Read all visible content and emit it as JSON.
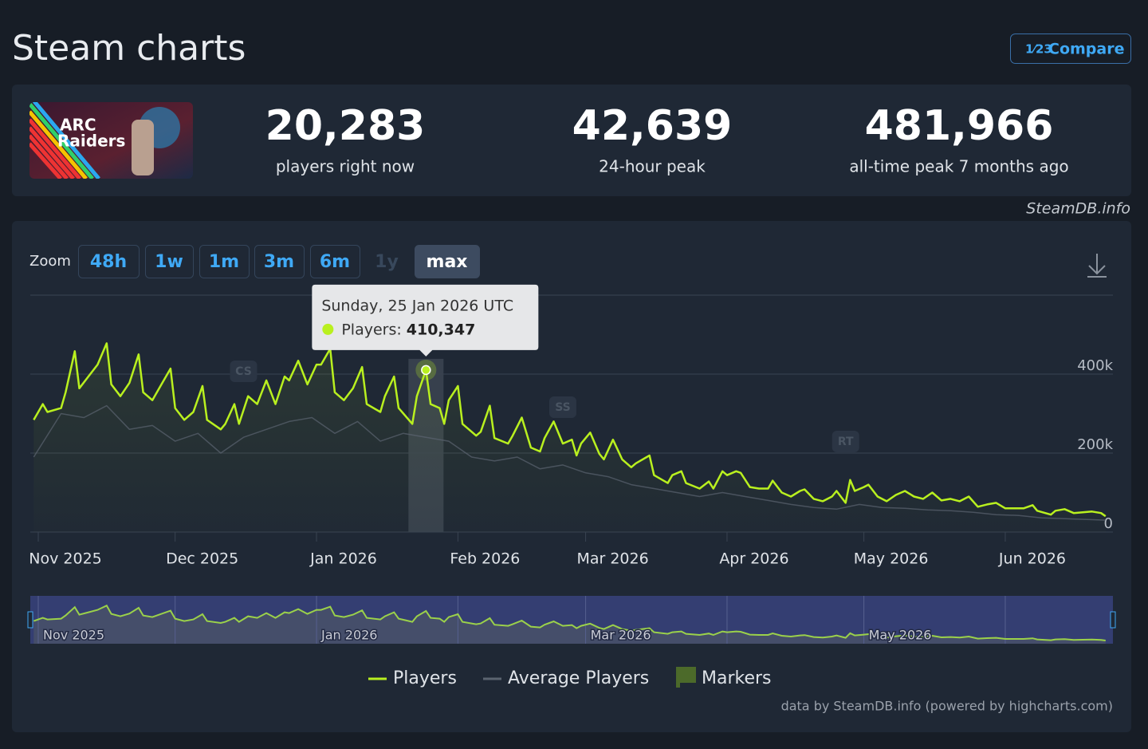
{
  "header": {
    "title": "Steam charts",
    "compare": "Compare",
    "compare_icon": "1⁄23"
  },
  "game": {
    "logo": [
      "ARC",
      "Raiders"
    ]
  },
  "stats": [
    {
      "value": "20,283",
      "label": "players right now"
    },
    {
      "value": "42,639",
      "label": "24-hour peak"
    },
    {
      "value": "481,966",
      "label": "all-time peak 7 months ago"
    }
  ],
  "source": "SteamDB.info",
  "zoom": {
    "label": "Zoom",
    "buttons": [
      "48h",
      "1w",
      "1m",
      "3m",
      "6m",
      "1y",
      "max"
    ],
    "disabled_index": 5,
    "active_index": 6
  },
  "chart_data": {
    "type": "line",
    "series": [
      {
        "name": "Players",
        "color": "#b9f01f",
        "x": [
          -1,
          1,
          2,
          5,
          6,
          8,
          9,
          11,
          13,
          15,
          16,
          18,
          20,
          22,
          23,
          25,
          27,
          29,
          30,
          32,
          34,
          36,
          37,
          40,
          41,
          43,
          44,
          46,
          48,
          50,
          52,
          54,
          55,
          57,
          59,
          61,
          62,
          64,
          65,
          67,
          69,
          71,
          72,
          75,
          76,
          78,
          79,
          82,
          83,
          85,
          86,
          88,
          89,
          90,
          92,
          93,
          96,
          97,
          99,
          100,
          103,
          104,
          106,
          108,
          110,
          111,
          113,
          115,
          117,
          118,
          119,
          121,
          123,
          124,
          126,
          128,
          130,
          131,
          134,
          135,
          138,
          139,
          141,
          142,
          145,
          147,
          148,
          150,
          151,
          153,
          154,
          156,
          158,
          160,
          161,
          163,
          165,
          167,
          168,
          170,
          172,
          174,
          175,
          177,
          178,
          179,
          181,
          182,
          184,
          186,
          188,
          190,
          192,
          194,
          196,
          198,
          200,
          202,
          204,
          206,
          208,
          210,
          212,
          214,
          216,
          218,
          219,
          222,
          223,
          225,
          227,
          229,
          231,
          233,
          234
        ],
        "values": [
          284000,
          324000,
          304000,
          314000,
          354000,
          458000,
          364000,
          394000,
          424000,
          478000,
          374000,
          344000,
          378000,
          450000,
          354000,
          334000,
          374000,
          414000,
          314000,
          284000,
          304000,
          370000,
          284000,
          260000,
          274000,
          324000,
          274000,
          344000,
          324000,
          384000,
          324000,
          394000,
          384000,
          434000,
          374000,
          424000,
          424000,
          464000,
          354000,
          334000,
          364000,
          418000,
          324000,
          304000,
          344000,
          394000,
          314000,
          274000,
          344000,
          410347,
          324000,
          314000,
          274000,
          334000,
          370000,
          274000,
          244000,
          254000,
          320000,
          238000,
          224000,
          244000,
          290000,
          214000,
          204000,
          238000,
          280000,
          224000,
          234000,
          194000,
          224000,
          252000,
          198000,
          184000,
          234000,
          184000,
          164000,
          174000,
          194000,
          144000,
          124000,
          144000,
          154000,
          124000,
          110000,
          128000,
          110000,
          154000,
          144000,
          154000,
          150000,
          114000,
          110000,
          110000,
          130000,
          100000,
          90000,
          104000,
          108000,
          84000,
          78000,
          90000,
          104000,
          74000,
          132000,
          104000,
          114000,
          120000,
          90000,
          78000,
          94000,
          104000,
          90000,
          84000,
          100000,
          80000,
          84000,
          78000,
          90000,
          64000,
          70000,
          74000,
          60000,
          60000,
          60000,
          68000,
          54000,
          44000,
          54000,
          58000,
          48000,
          50000,
          52000,
          48000,
          40000
        ]
      },
      {
        "name": "Average Players",
        "color": "#5b6470",
        "x": [
          -1,
          5,
          10,
          15,
          20,
          25,
          30,
          35,
          40,
          45,
          50,
          55,
          60,
          65,
          70,
          75,
          80,
          85,
          90,
          95,
          100,
          105,
          110,
          115,
          120,
          125,
          130,
          135,
          140,
          145,
          150,
          155,
          160,
          165,
          170,
          175,
          180,
          185,
          190,
          195,
          200,
          205,
          210,
          215,
          220,
          225,
          230,
          234
        ],
        "values": [
          190000,
          300000,
          290000,
          320000,
          260000,
          270000,
          230000,
          250000,
          200000,
          240000,
          260000,
          280000,
          290000,
          250000,
          280000,
          230000,
          250000,
          240000,
          230000,
          190000,
          180000,
          190000,
          160000,
          170000,
          150000,
          140000,
          120000,
          110000,
          100000,
          90000,
          100000,
          90000,
          80000,
          70000,
          62000,
          58000,
          70000,
          62000,
          60000,
          56000,
          54000,
          50000,
          44000,
          42000,
          36000,
          34000,
          32000,
          30000
        ]
      }
    ],
    "xlim": [
      -1.75,
      235.6
    ],
    "xticks": [
      {
        "value": 0,
        "label": "Nov 2025"
      },
      {
        "value": 30,
        "label": "Dec 2025"
      },
      {
        "value": 61,
        "label": "Jan 2026"
      },
      {
        "value": 92,
        "label": "Feb 2026"
      },
      {
        "value": 120,
        "label": "Mar 2026"
      },
      {
        "value": 151,
        "label": "Apr 2026"
      },
      {
        "value": 181,
        "label": "May 2026"
      },
      {
        "value": 212,
        "label": "Jun 2026"
      }
    ],
    "ylim": [
      0,
      600000
    ],
    "yticks": [
      0,
      {
        "value": 200000,
        "label": "200k"
      },
      {
        "value": 400000,
        "label": "400k"
      }
    ],
    "grid": true,
    "markers": [
      {
        "label": "CS",
        "x": 45
      },
      {
        "label": "SS",
        "x": 115
      },
      {
        "label": "RT",
        "x": 177
      }
    ],
    "markers_legend": "Markers",
    "navigator_ticks": [
      0,
      2,
      4,
      6
    ],
    "tooltip": {
      "index": 49,
      "date": "Sunday, 25 Jan 2026 UTC",
      "series_label": "Players:",
      "value_label": "410,347"
    },
    "credits": "data by SteamDB.info (powered by highcharts.com)"
  }
}
